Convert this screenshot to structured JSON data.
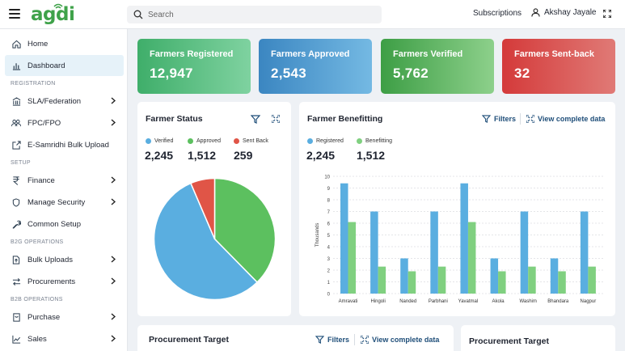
{
  "app": {
    "logo": "agdi"
  },
  "search": {
    "placeholder": "Search"
  },
  "header": {
    "subscriptions": "Subscriptions",
    "user_name": "Akshay Jayale"
  },
  "sidebar": {
    "items": [
      {
        "label": "Home",
        "icon": "home-icon"
      },
      {
        "label": "Dashboard",
        "icon": "bar-chart-icon",
        "active": true
      },
      {
        "section": "REGISTRATION"
      },
      {
        "label": "SLA/Federation",
        "icon": "bank-icon",
        "chevron": true
      },
      {
        "label": "FPC/FPO",
        "icon": "users-icon",
        "chevron": true
      },
      {
        "label": "E-Samridhi Bulk Upload",
        "icon": "upload-icon"
      },
      {
        "section": "SETUP"
      },
      {
        "label": "Finance",
        "icon": "rupee-icon",
        "chevron": true
      },
      {
        "label": "Manage Security",
        "icon": "shield-icon",
        "chevron": true
      },
      {
        "label": "Common Setup",
        "icon": "wrench-icon"
      },
      {
        "section": "B2G OPERATIONS"
      },
      {
        "label": "Bulk Uploads",
        "icon": "file-upload-icon",
        "chevron": true
      },
      {
        "label": "Procurements",
        "icon": "swap-icon",
        "chevron": true
      },
      {
        "section": "B2B OPERATIONS"
      },
      {
        "label": "Purchase",
        "icon": "cart-icon",
        "chevron": true
      },
      {
        "label": "Sales",
        "icon": "trend-icon",
        "chevron": true
      }
    ]
  },
  "stats": [
    {
      "label": "Farmers Registered",
      "value": "12,947"
    },
    {
      "label": "Farmers Approved",
      "value": "2,543"
    },
    {
      "label": "Farmers Verified",
      "value": "5,762"
    },
    {
      "label": "Farmers Sent-back",
      "value": "32"
    }
  ],
  "farmer_status": {
    "title": "Farmer Status",
    "legend": [
      {
        "label": "Verified",
        "value": "2,245",
        "color": "#5aaee0"
      },
      {
        "label": "Approved",
        "value": "1,512",
        "color": "#5cc05f"
      },
      {
        "label": "Sent Back",
        "value": "259",
        "color": "#e05547"
      }
    ]
  },
  "farmer_benefitting": {
    "title": "Farmer Benefitting",
    "filters": "Filters",
    "view_complete": "View complete data",
    "legend": [
      {
        "label": "Registered",
        "value": "2,245",
        "color": "#5aaee0"
      },
      {
        "label": "Benefitting",
        "value": "1,512",
        "color": "#80d080"
      }
    ]
  },
  "procurement_target": {
    "title": "Procurement Target",
    "filters": "Filters",
    "view_complete": "View complete data"
  },
  "procurement_target_2": {
    "title": "Procurement Target"
  },
  "chart_data": [
    {
      "type": "pie",
      "labels": [
        "Verified",
        "Approved",
        "Sent Back"
      ],
      "values": [
        2245,
        1512,
        259
      ],
      "colors": [
        "#5aaee0",
        "#5cc05f",
        "#e05547"
      ]
    },
    {
      "type": "bar",
      "categories": [
        "Amravati",
        "Hingoli",
        "Nanded",
        "Parbhani",
        "Yavatmal",
        "Akola",
        "Washim",
        "Bhandara",
        "Nagpur"
      ],
      "series": [
        {
          "name": "Registered",
          "color": "#5aaee0",
          "values": [
            9.4,
            7.0,
            3.0,
            7.0,
            9.4,
            3.0,
            7.0,
            3.0,
            7.0
          ]
        },
        {
          "name": "Benefitting",
          "color": "#80d080",
          "values": [
            6.1,
            2.3,
            1.9,
            2.3,
            6.1,
            1.9,
            2.3,
            1.9,
            2.3
          ]
        }
      ],
      "ylabel": "Thousands",
      "ylim": [
        0,
        10
      ],
      "yticks": [
        "0",
        "1",
        "2",
        "3",
        "4",
        "5",
        "6",
        "7",
        "8",
        "9",
        "10"
      ],
      "grid": true
    }
  ]
}
